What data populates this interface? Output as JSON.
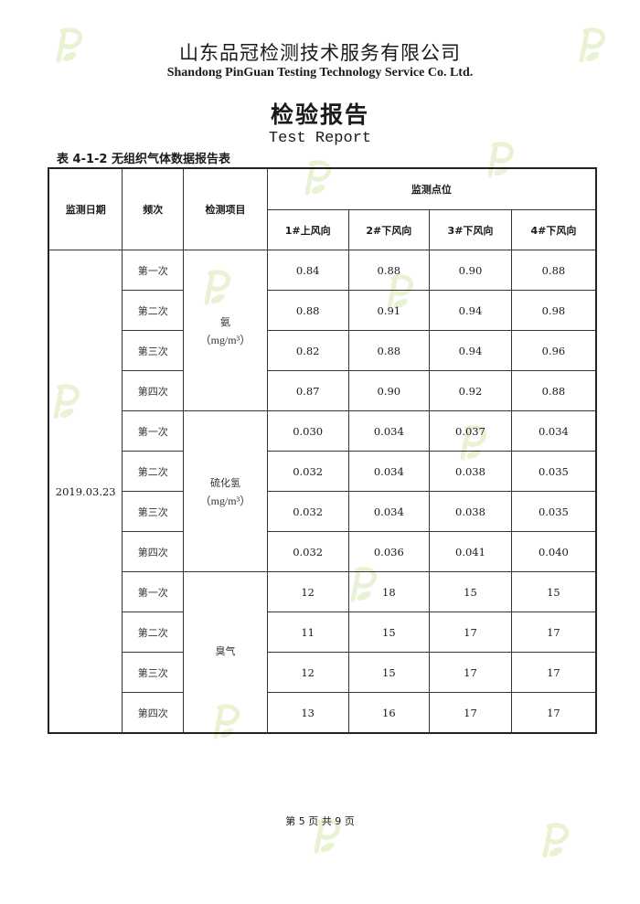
{
  "header": {
    "company": "山东品冠检测技术服务有限公司",
    "company_en": "Shandong PinGuan Testing Technology Service Co. Ltd.",
    "title": "检验报告",
    "title_en": "Test Report"
  },
  "table": {
    "caption": "表 4-1-2 无组织气体数据报告表",
    "headers": {
      "date": "监测日期",
      "frequency": "频次",
      "item": "检测项目",
      "points_group": "监测点位",
      "points": [
        "1#上风向",
        "2#下风向",
        "3#下风向",
        "4#下风向"
      ]
    },
    "date": "2019.03.23",
    "groups": [
      {
        "item": "氨",
        "unit": "（mg/m³）",
        "rows": [
          {
            "freq": "第一次",
            "values": [
              "0.84",
              "0.88",
              "0.90",
              "0.88"
            ]
          },
          {
            "freq": "第二次",
            "values": [
              "0.88",
              "0.91",
              "0.94",
              "0.98"
            ]
          },
          {
            "freq": "第三次",
            "values": [
              "0.82",
              "0.88",
              "0.94",
              "0.96"
            ]
          },
          {
            "freq": "第四次",
            "values": [
              "0.87",
              "0.90",
              "0.92",
              "0.88"
            ]
          }
        ]
      },
      {
        "item": "硫化氢",
        "unit": "（mg/m³）",
        "rows": [
          {
            "freq": "第一次",
            "values": [
              "0.030",
              "0.034",
              "0.037",
              "0.034"
            ]
          },
          {
            "freq": "第二次",
            "values": [
              "0.032",
              "0.034",
              "0.038",
              "0.035"
            ]
          },
          {
            "freq": "第三次",
            "values": [
              "0.032",
              "0.034",
              "0.038",
              "0.035"
            ]
          },
          {
            "freq": "第四次",
            "values": [
              "0.032",
              "0.036",
              "0.041",
              "0.040"
            ]
          }
        ]
      },
      {
        "item": "臭气",
        "unit": "",
        "rows": [
          {
            "freq": "第一次",
            "values": [
              "12",
              "18",
              "15",
              "15"
            ]
          },
          {
            "freq": "第二次",
            "values": [
              "11",
              "15",
              "17",
              "17"
            ]
          },
          {
            "freq": "第三次",
            "values": [
              "12",
              "15",
              "17",
              "17"
            ]
          },
          {
            "freq": "第四次",
            "values": [
              "13",
              "16",
              "17",
              "17"
            ]
          }
        ]
      }
    ]
  },
  "footer": {
    "page": "第 5 页 共 9 页"
  },
  "watermark": {
    "text": "P",
    "color": "#cfe3a0"
  }
}
